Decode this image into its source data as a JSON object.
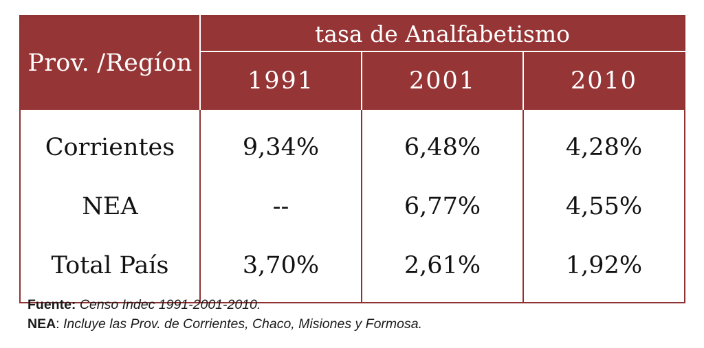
{
  "table": {
    "row_header": "Prov. /Regíon",
    "group_header": "tasa de Analfabetismo",
    "years": [
      "1991",
      "2001",
      "2010"
    ],
    "rows": [
      {
        "region": "Corrientes",
        "values": [
          "9,34%",
          "6,48%",
          "4,28%"
        ]
      },
      {
        "region": "NEA",
        "values": [
          "--",
          "6,77%",
          "4,55%"
        ]
      },
      {
        "region": "Total País",
        "values": [
          "3,70%",
          "2,61%",
          "1,92%"
        ]
      }
    ]
  },
  "notes": {
    "source_label": "Fuente:",
    "source_text": "Censo Indec 1991-2001-2010.",
    "nea_label": "NEA",
    "nea_sep": ":",
    "nea_text": "Incluye las Prov. de Corrientes, Chaco, Misiones y Formosa."
  },
  "colors": {
    "header_bg": "#963535",
    "header_text": "#ffffff",
    "border": "#8f3232"
  }
}
